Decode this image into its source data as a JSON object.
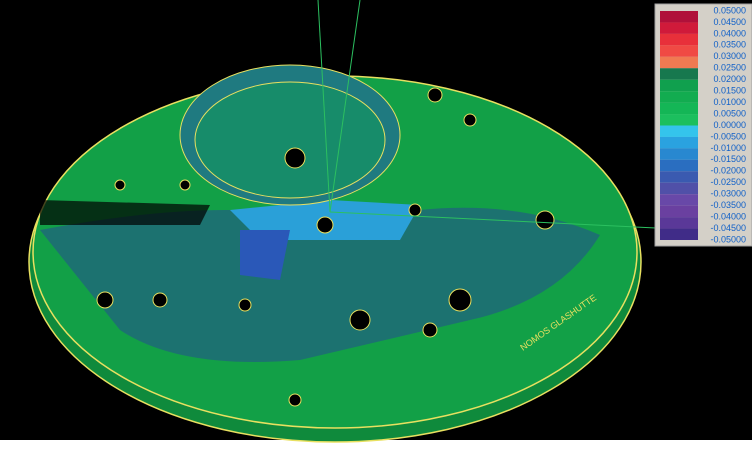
{
  "plate_text": "NOMOS GLASHUTTE",
  "legend": {
    "labels": [
      "0.05000",
      "0.04500",
      "0.04000",
      "0.03500",
      "0.03000",
      "0.02500",
      "0.02000",
      "0.01500",
      "0.01000",
      "0.00500",
      "0.00000",
      "-0.00500",
      "-0.01000",
      "-0.01500",
      "-0.02000",
      "-0.02500",
      "-0.03000",
      "-0.03500",
      "-0.04000",
      "-0.04500",
      "-0.05000"
    ],
    "colors": [
      "#b0103a",
      "#d01a3a",
      "#e8303a",
      "#f04a44",
      "#f07a52",
      "#17784e",
      "#10a04e",
      "#12ac50",
      "#14b656",
      "#1cbf5e",
      "#34c4ec",
      "#2aa2e0",
      "#2888d0",
      "#2a6ec0",
      "#3a5ab0",
      "#5050a8",
      "#6848a8",
      "#6a40a0",
      "#5a3898",
      "#402c88"
    ]
  }
}
